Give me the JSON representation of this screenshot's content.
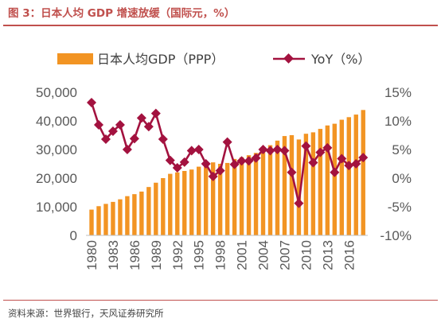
{
  "title": "图 3：日本人均 GDP 增速放缓（国际元，%）",
  "source": "资料来源：世界银行，天风证券研究所",
  "chart_data": {
    "type": "bar+line",
    "title": "",
    "legend": [
      "日本人均GDP（PPP）",
      "YoY（%）"
    ],
    "legend_position": "top",
    "x_tick_labels": [
      "1980",
      "1983",
      "1986",
      "1989",
      "1992",
      "1995",
      "1998",
      "2001",
      "2004",
      "2007",
      "2010",
      "2013",
      "2016"
    ],
    "left_axis": {
      "ylim": [
        0,
        50000
      ],
      "ticks": [
        0,
        10000,
        20000,
        30000,
        40000,
        50000
      ],
      "tick_labels": [
        "0",
        "10,000",
        "20,000",
        "30,000",
        "40,000",
        "50,000"
      ]
    },
    "right_axis": {
      "ylim": [
        -10,
        15
      ],
      "ticks": [
        -10,
        -5,
        0,
        5,
        10,
        15
      ],
      "tick_labels": [
        "-10%",
        "-5%",
        "0%",
        "5%",
        "10%",
        "15%"
      ]
    },
    "x": [
      1980,
      1981,
      1982,
      1983,
      1984,
      1985,
      1986,
      1987,
      1988,
      1989,
      1990,
      1991,
      1992,
      1993,
      1994,
      1995,
      1996,
      1997,
      1998,
      1999,
      2000,
      2001,
      2002,
      2003,
      2004,
      2005,
      2006,
      2007,
      2008,
      2009,
      2010,
      2011,
      2012,
      2013,
      2014,
      2015,
      2016,
      2017,
      2018
    ],
    "series": [
      {
        "name": "日本人均GDP（PPP）",
        "type": "bar",
        "axis": "left",
        "color": "#f29423",
        "values": [
          9000,
          10200,
          11000,
          11700,
          12600,
          13700,
          14400,
          15300,
          16900,
          18400,
          20000,
          21500,
          22000,
          22500,
          23000,
          24000,
          25100,
          25500,
          25000,
          25300,
          26700,
          27300,
          28000,
          28800,
          30300,
          31500,
          33100,
          34700,
          35000,
          33500,
          35500,
          36000,
          37200,
          38400,
          39000,
          40400,
          41300,
          42200,
          43800
        ]
      },
      {
        "name": "YoY（%）",
        "type": "line",
        "axis": "right",
        "color": "#a3123f",
        "values": [
          13.2,
          9.3,
          6.8,
          8.2,
          9.3,
          5.0,
          6.9,
          10.5,
          9.0,
          11.3,
          6.8,
          3.1,
          1.8,
          2.8,
          4.8,
          5.0,
          2.5,
          0.3,
          1.3,
          6.3,
          2.4,
          3.0,
          3.0,
          3.5,
          5.0,
          4.8,
          5.0,
          4.8,
          1.0,
          -4.4,
          5.6,
          2.7,
          4.5,
          5.3,
          1.0,
          3.4,
          2.2,
          2.5,
          3.6
        ]
      }
    ],
    "grid": false
  }
}
